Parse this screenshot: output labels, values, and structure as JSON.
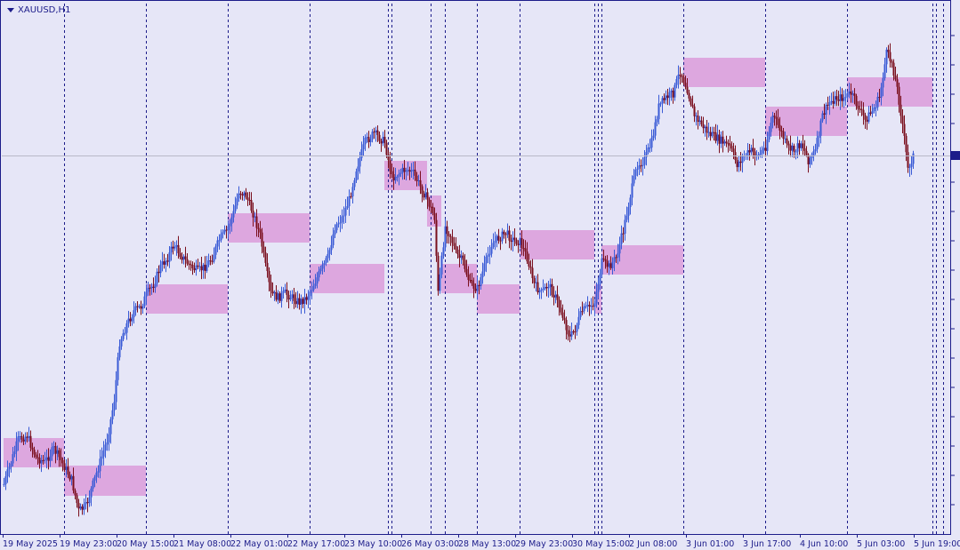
{
  "symbol": "XAUUSD,H1",
  "colors": {
    "background": "#e6e6f7",
    "bull": "#3a5bd6",
    "bear": "#7a0f1e",
    "zone": "#dca0dc",
    "separator": "#1c1c8a",
    "axis": "#1c1c8a",
    "current_price_line": "#b8b8c8"
  },
  "chart_data": {
    "type": "candlestick",
    "instrument": "XAUUSD",
    "timeframe": "H1",
    "y_scale": "unlabeled",
    "x_tick_labels": [
      "19 May 2025",
      "19 May 23:00",
      "20 May 15:00",
      "21 May 08:00",
      "22 May 01:00",
      "22 May 17:00",
      "23 May 10:00",
      "26 May 03:00",
      "28 May 13:00",
      "29 May 23:00",
      "30 May 15:00",
      "2 Jun 08:00",
      "3 Jun 01:00",
      "3 Jun 17:00",
      "4 Jun 10:00",
      "5 Jun 03:00",
      "5 Jun 19:00"
    ],
    "session_separators": 19,
    "supply_demand_zones": 17,
    "grid": false
  }
}
